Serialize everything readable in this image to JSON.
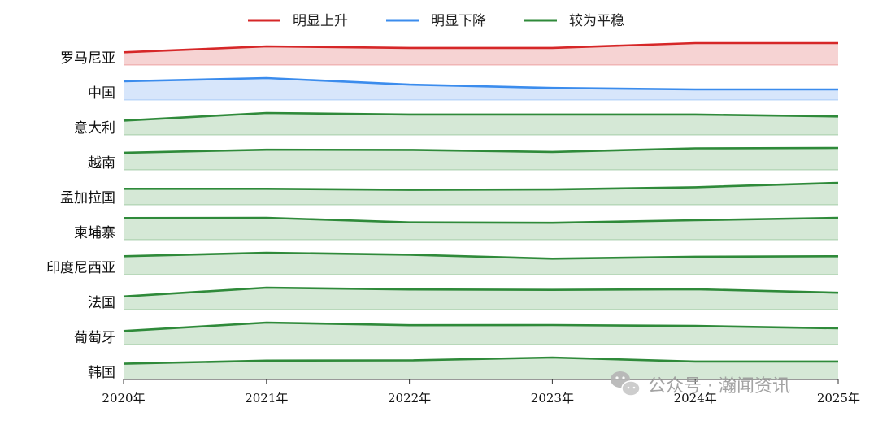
{
  "chart_data": {
    "type": "area",
    "x": [
      "2020年",
      "2021年",
      "2022年",
      "2023年",
      "2024年",
      "2025年"
    ],
    "legend": [
      {
        "key": "up",
        "label": "明显上升",
        "color": "#d62728"
      },
      {
        "key": "down",
        "label": "明显下降",
        "color": "#3b8ced"
      },
      {
        "key": "flat",
        "label": "较为平稳",
        "color": "#2f8a3a"
      }
    ],
    "fill_colors": {
      "up": "#f6d3d3",
      "down": "#d7e6fb",
      "flat": "#d5e8d6"
    },
    "series": [
      {
        "name": "罗马尼亚",
        "trend": "up",
        "values": [
          0.58,
          0.85,
          0.78,
          0.78,
          1.0,
          1.0
        ]
      },
      {
        "name": "中国",
        "trend": "down",
        "values": [
          0.85,
          1.0,
          0.7,
          0.55,
          0.48,
          0.48
        ]
      },
      {
        "name": "意大利",
        "trend": "flat",
        "values": [
          0.65,
          1.0,
          0.93,
          0.93,
          0.93,
          0.84
        ]
      },
      {
        "name": "越南",
        "trend": "flat",
        "values": [
          0.78,
          0.92,
          0.91,
          0.82,
          0.98,
          1.0
        ]
      },
      {
        "name": "孟加拉国",
        "trend": "flat",
        "values": [
          0.73,
          0.73,
          0.68,
          0.7,
          0.8,
          1.0
        ]
      },
      {
        "name": "柬埔寨",
        "trend": "flat",
        "values": [
          0.99,
          1.0,
          0.79,
          0.77,
          0.89,
          1.0
        ]
      },
      {
        "name": "印度尼西亚",
        "trend": "flat",
        "values": [
          0.84,
          1.0,
          0.91,
          0.73,
          0.82,
          0.84
        ]
      },
      {
        "name": "法国",
        "trend": "flat",
        "values": [
          0.6,
          1.0,
          0.92,
          0.9,
          0.93,
          0.77
        ]
      },
      {
        "name": "葡萄牙",
        "trend": "flat",
        "values": [
          0.62,
          1.0,
          0.88,
          0.89,
          0.85,
          0.74
        ]
      },
      {
        "name": "韩国",
        "trend": "flat",
        "values": [
          0.72,
          0.86,
          0.87,
          1.0,
          0.82,
          0.82
        ]
      }
    ],
    "title": "",
    "xlabel": "",
    "ylabel": "",
    "grid": false,
    "legend_position": "top-center"
  },
  "watermark": {
    "text": "公众号 · 瀚闻资讯",
    "icon": "wechat-icon"
  }
}
